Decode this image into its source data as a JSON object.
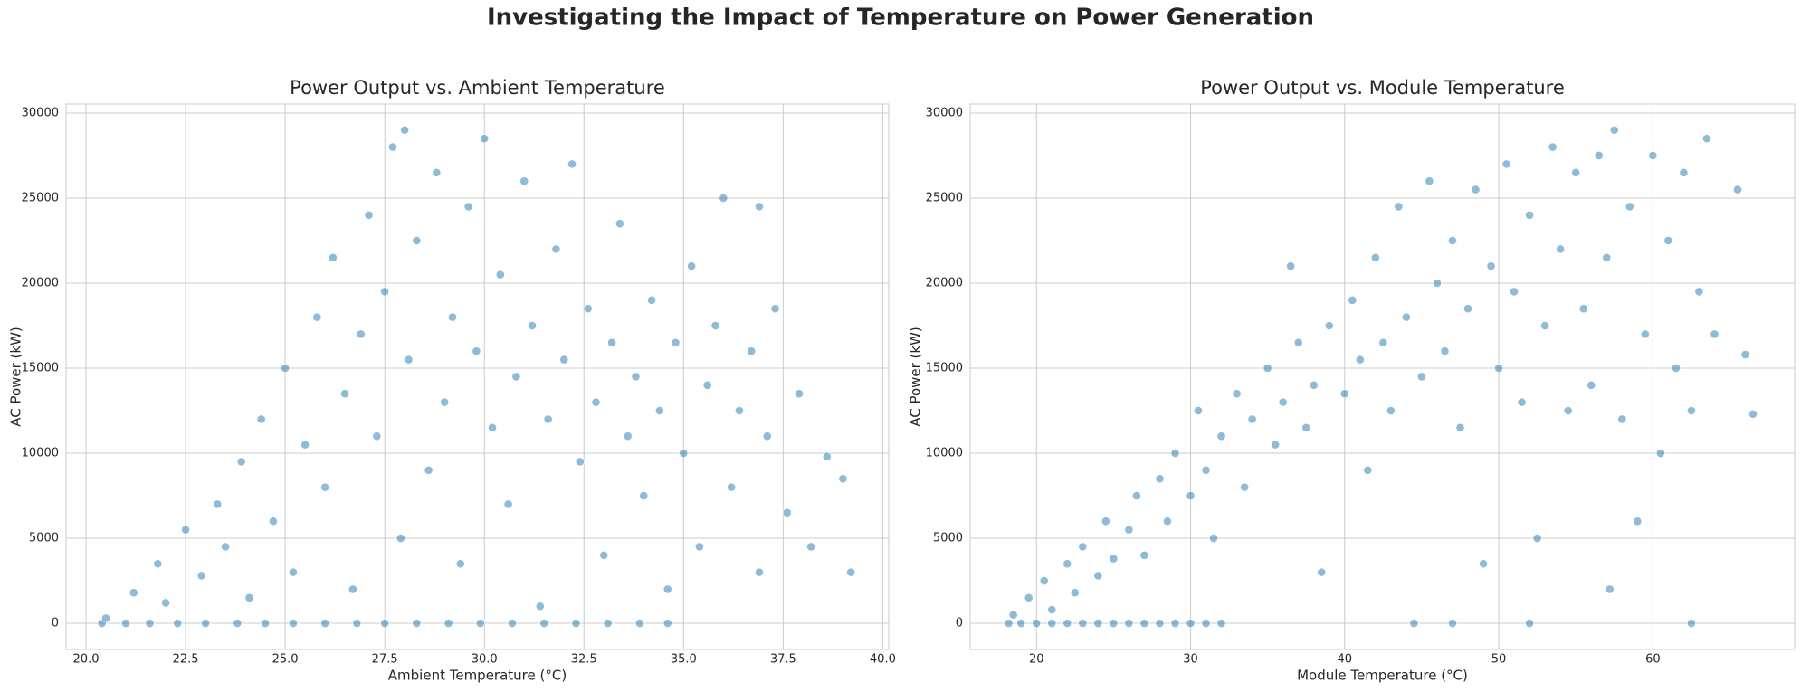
{
  "title": "Investigating the Impact of Temperature on Power Generation",
  "chart_data": [
    {
      "type": "scatter",
      "title": "Power Output vs. Ambient Temperature",
      "xlabel": "Ambient Temperature (°C)",
      "ylabel": "AC Power (kW)",
      "color": "#1f77b4",
      "grid": true,
      "xlim": [
        19.5,
        40.15
      ],
      "ylim": [
        -1540,
        30530
      ],
      "xticks": [
        {
          "value": 20,
          "label": "20.0"
        },
        22.5,
        {
          "value": 25,
          "label": "25.0"
        },
        27.5,
        {
          "value": 30,
          "label": "30.0"
        },
        32.5,
        {
          "value": 35,
          "label": "35.0"
        },
        37.5,
        {
          "value": 40,
          "label": "40.0"
        }
      ],
      "yticks": [
        0,
        5000,
        10000,
        15000,
        20000,
        25000,
        30000
      ],
      "x": [
        20.4,
        21.0,
        21.6,
        22.3,
        23.0,
        23.8,
        24.5,
        25.2,
        26.0,
        26.8,
        27.5,
        28.3,
        29.1,
        29.9,
        30.7,
        31.5,
        32.3,
        33.1,
        33.9,
        34.6,
        20.5,
        21.2,
        21.8,
        22.0,
        22.5,
        22.9,
        23.3,
        23.5,
        23.9,
        24.1,
        24.4,
        24.7,
        25.0,
        25.2,
        25.5,
        25.8,
        26.0,
        26.2,
        26.5,
        26.7,
        26.9,
        27.1,
        27.3,
        27.5,
        27.7,
        27.9,
        28.1,
        28.3,
        28.6,
        28.8,
        29.0,
        29.2,
        29.4,
        29.6,
        29.8,
        30.0,
        30.2,
        30.4,
        30.6,
        30.8,
        31.0,
        31.2,
        31.4,
        31.6,
        31.8,
        32.0,
        32.2,
        32.4,
        32.6,
        32.8,
        33.0,
        33.2,
        33.4,
        33.6,
        33.8,
        34.0,
        34.2,
        34.4,
        34.6,
        34.8,
        35.0,
        35.2,
        35.4,
        35.6,
        35.8,
        36.0,
        36.2,
        36.4,
        36.7,
        36.9,
        37.1,
        37.3,
        37.6,
        37.9,
        38.2,
        38.6,
        39.0,
        39.2,
        36.9,
        28.0
      ],
      "values": [
        0,
        0,
        0,
        0,
        0,
        0,
        0,
        0,
        0,
        0,
        0,
        0,
        0,
        0,
        0,
        0,
        0,
        0,
        0,
        0,
        300,
        1800,
        3500,
        1200,
        5500,
        2800,
        7000,
        4500,
        9500,
        1500,
        12000,
        6000,
        15000,
        3000,
        10500,
        18000,
        8000,
        21500,
        13500,
        2000,
        17000,
        24000,
        11000,
        19500,
        28000,
        5000,
        15500,
        22500,
        9000,
        26500,
        13000,
        18000,
        3500,
        24500,
        16000,
        28500,
        11500,
        20500,
        7000,
        14500,
        26000,
        17500,
        1000,
        12000,
        22000,
        15500,
        27000,
        9500,
        18500,
        13000,
        4000,
        16500,
        23500,
        11000,
        14500,
        7500,
        19000,
        12500,
        2000,
        16500,
        10000,
        21000,
        4500,
        14000,
        17500,
        25000,
        8000,
        12500,
        16000,
        3000,
        11000,
        18500,
        6500,
        13500,
        4500,
        9800,
        8500,
        3000,
        24500,
        29000
      ]
    },
    {
      "type": "scatter",
      "title": "Power Output vs. Module Temperature",
      "xlabel": "Module Temperature (°C)",
      "ylabel": "AC Power (kW)",
      "color": "#1f77b4",
      "grid": true,
      "xlim": [
        15.7,
        69.2
      ],
      "ylim": [
        -1540,
        30530
      ],
      "xticks": [
        20,
        30,
        40,
        50,
        60
      ],
      "yticks": [
        0,
        5000,
        10000,
        15000,
        20000,
        25000,
        30000
      ],
      "x": [
        18.2,
        19.0,
        20.0,
        21.0,
        22.0,
        23.0,
        24.0,
        25.0,
        26.0,
        27.0,
        28.0,
        29.0,
        30.0,
        31.0,
        32.0,
        44.5,
        47.0,
        52.0,
        62.5,
        18.5,
        19.5,
        20.5,
        21,
        22,
        22.5,
        23,
        24,
        24.5,
        25,
        26,
        26.5,
        27,
        28,
        28.5,
        29,
        30,
        30.5,
        31,
        31.5,
        32,
        33,
        33.5,
        34,
        35,
        35.5,
        36,
        36.5,
        37,
        37.5,
        38,
        38.5,
        39,
        40,
        40.5,
        41,
        41.5,
        42,
        42.5,
        43,
        43.5,
        44,
        45,
        45.5,
        46,
        46.5,
        47,
        47.5,
        48,
        48.5,
        49,
        49.5,
        50,
        50.5,
        51,
        51.5,
        52,
        52.5,
        53,
        53.5,
        54,
        54.5,
        55,
        55.5,
        56,
        56.5,
        57,
        57.2,
        57.5,
        58,
        58.5,
        59,
        59.5,
        60,
        60.5,
        61,
        61.5,
        62,
        62.5,
        63,
        63.5,
        64,
        65.5,
        66,
        66.5
      ],
      "values": [
        0,
        0,
        0,
        0,
        0,
        0,
        0,
        0,
        0,
        0,
        0,
        0,
        0,
        0,
        0,
        0,
        0,
        0,
        0,
        500,
        1500,
        2500,
        800,
        3500,
        1800,
        4500,
        2800,
        6000,
        3800,
        5500,
        7500,
        4000,
        8500,
        6000,
        10000,
        7500,
        12500,
        9000,
        5000,
        11000,
        13500,
        8000,
        12000,
        15000,
        10500,
        13000,
        21000,
        16500,
        11500,
        14000,
        3000,
        17500,
        13500,
        19000,
        15500,
        9000,
        21500,
        16500,
        12500,
        24500,
        18000,
        14500,
        26000,
        20000,
        16000,
        22500,
        11500,
        18500,
        25500,
        3500,
        21000,
        15000,
        27000,
        19500,
        13000,
        24000,
        5000,
        17500,
        28000,
        22000,
        12500,
        26500,
        18500,
        14000,
        27500,
        21500,
        2000,
        29000,
        12000,
        24500,
        6000,
        17000,
        27500,
        10000,
        22500,
        15000,
        26500,
        12500,
        19500,
        28500,
        17000,
        25500,
        15800,
        12300
      ]
    }
  ]
}
